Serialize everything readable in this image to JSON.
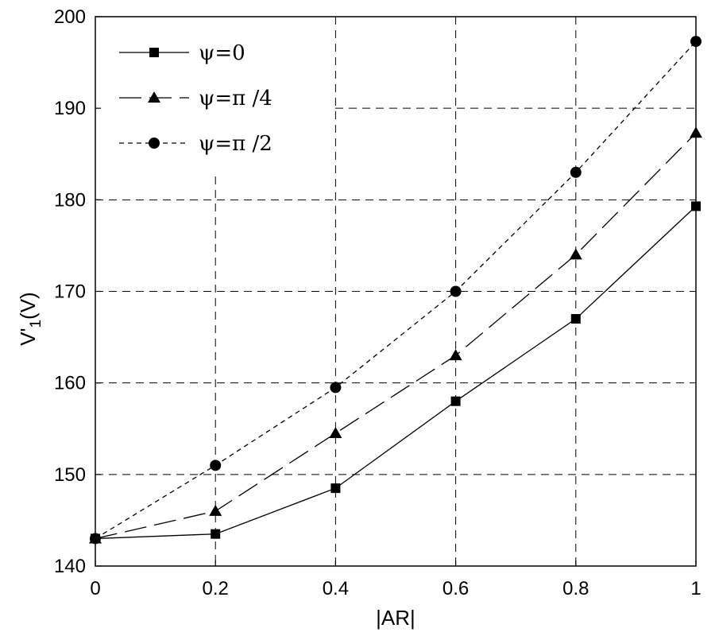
{
  "chart_data": {
    "type": "line",
    "xlabel": "|AR|",
    "ylabel_main": "V'",
    "ylabel_sub": "1",
    "ylabel_unit": "(V)",
    "xlim": [
      0,
      1
    ],
    "ylim": [
      140,
      200
    ],
    "xticks": [
      0,
      0.2,
      0.4,
      0.6,
      0.8,
      1
    ],
    "xtick_labels": [
      "0",
      "0.2",
      "0.4",
      "0.6",
      "0.8",
      "1"
    ],
    "yticks": [
      140,
      150,
      160,
      170,
      180,
      190,
      200
    ],
    "ytick_labels": [
      "140",
      "150",
      "160",
      "170",
      "180",
      "190",
      "200"
    ],
    "grid": true,
    "legend_position": "top-left",
    "x": [
      0,
      0.2,
      0.4,
      0.6,
      0.8,
      1
    ],
    "series": [
      {
        "name": "ψ=0",
        "marker": "square",
        "line": "solid",
        "values": [
          143,
          143.5,
          148.5,
          158,
          167,
          179.3
        ]
      },
      {
        "name": "ψ=π /4",
        "marker": "triangle",
        "line": "long-dash",
        "values": [
          143,
          146,
          154.5,
          163,
          174,
          187.3
        ]
      },
      {
        "name": "ψ=π /2",
        "marker": "circle",
        "line": "short-dash",
        "values": [
          143,
          151,
          159.5,
          170,
          183,
          197.3
        ]
      }
    ]
  }
}
